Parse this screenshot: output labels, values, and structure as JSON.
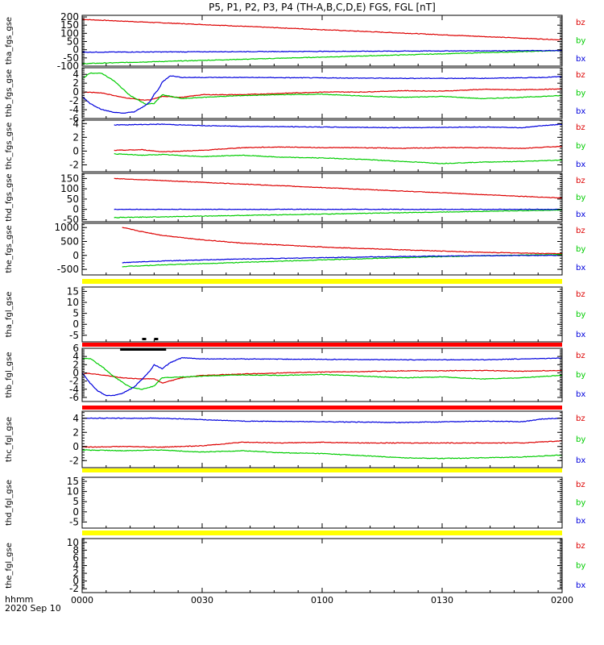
{
  "chart_data": {
    "type": "line",
    "title": "P5, P1, P2, P3, P4 (TH-A,B,C,D,E) FGS, FGL [nT]",
    "date_label": "2020 Sep 10",
    "time_unit_label": "hhmm",
    "x_ticks": [
      "0000",
      "0030",
      "0100",
      "0130",
      "0200"
    ],
    "x_range_minutes": [
      0,
      120
    ],
    "legend_entries": [
      {
        "label": "bz",
        "color": "#dd0000"
      },
      {
        "label": "by",
        "color": "#00cc00"
      },
      {
        "label": "bx",
        "color": "#0000dd"
      }
    ],
    "panels": [
      {
        "ylabel": "tha_fgs_gse",
        "ylim": [
          -100,
          210
        ],
        "yticks": [
          -100,
          -50,
          0,
          50,
          100,
          150,
          200
        ],
        "series": [
          {
            "name": "bz",
            "x": [
              0,
              120
            ],
            "y": [
              185,
              60
            ]
          },
          {
            "name": "by",
            "x": [
              0,
              120
            ],
            "y": [
              -85,
              -5
            ]
          },
          {
            "name": "bx",
            "x": [
              0,
              120
            ],
            "y": [
              -15,
              -5
            ]
          }
        ],
        "status_bar": null
      },
      {
        "ylabel": "thb_fgs_gse",
        "ylim": [
          -6,
          5.5
        ],
        "yticks": [
          -6,
          -4,
          -2,
          0,
          2,
          4
        ],
        "series": [
          {
            "name": "bz",
            "x": [
              0,
              5,
              10,
              15,
              17,
              20,
              25,
              30,
              40,
              50,
              60,
              70,
              80,
              90,
              100,
              110,
              120
            ],
            "y": [
              0,
              -0.2,
              -1.2,
              -1.8,
              -1.8,
              -1.0,
              -1.2,
              -0.6,
              -0.6,
              -0.3,
              0,
              0,
              0.3,
              0.2,
              0.6,
              0.5,
              0.7
            ]
          },
          {
            "name": "by",
            "x": [
              0,
              2,
              5,
              8,
              12,
              16,
              18,
              20,
              25,
              30,
              40,
              50,
              60,
              70,
              80,
              90,
              100,
              110,
              120
            ],
            "y": [
              3,
              4.3,
              4.2,
              2.5,
              -0.8,
              -2.8,
              -2.6,
              -0.6,
              -1.5,
              -1.2,
              -0.8,
              -0.6,
              -0.5,
              -0.9,
              -1.2,
              -1.0,
              -1.5,
              -1.2,
              -0.8
            ]
          },
          {
            "name": "bx",
            "x": [
              0,
              2,
              5,
              8,
              10,
              13,
              15,
              17,
              18,
              19,
              20,
              22,
              25,
              30,
              40,
              60,
              80,
              100,
              115,
              120
            ],
            "y": [
              -1,
              -2.6,
              -4,
              -4.6,
              -4.8,
              -4.5,
              -3.5,
              -2.2,
              -0.5,
              0.5,
              2.2,
              3.7,
              3.3,
              3.3,
              3.3,
              3.2,
              3.1,
              3.1,
              3.3,
              3.5
            ]
          }
        ],
        "status_bar": null
      },
      {
        "ylabel": "thc_fgs_gse",
        "ylim": [
          -3,
          4.5
        ],
        "yticks": [
          -2,
          0,
          2,
          4
        ],
        "series": [
          {
            "name": "bz",
            "x": [
              8,
              15,
              20,
              30,
              40,
              50,
              60,
              70,
              80,
              90,
              100,
              110,
              120
            ],
            "y": [
              0.1,
              0.2,
              -0.1,
              0.1,
              0.5,
              0.6,
              0.5,
              0.5,
              0.4,
              0.5,
              0.5,
              0.4,
              0.7
            ]
          },
          {
            "name": "by",
            "x": [
              8,
              15,
              20,
              30,
              40,
              50,
              60,
              70,
              80,
              90,
              100,
              110,
              120
            ],
            "y": [
              -0.4,
              -0.6,
              -0.5,
              -0.8,
              -0.6,
              -0.9,
              -1.0,
              -1.2,
              -1.5,
              -1.8,
              -1.6,
              -1.5,
              -1.3
            ]
          },
          {
            "name": "bx",
            "x": [
              8,
              20,
              30,
              40,
              60,
              80,
              100,
              110,
              115,
              120
            ],
            "y": [
              3.8,
              3.9,
              3.7,
              3.6,
              3.5,
              3.4,
              3.5,
              3.4,
              3.7,
              3.9
            ]
          }
        ],
        "status_bar": null
      },
      {
        "ylabel": "thd_fgs_gse",
        "ylim": [
          -60,
          175
        ],
        "yticks": [
          -50,
          0,
          50,
          100,
          150
        ],
        "series": [
          {
            "name": "bz",
            "x": [
              8,
              120
            ],
            "y": [
              150,
              55
            ]
          },
          {
            "name": "by",
            "x": [
              8,
              120
            ],
            "y": [
              -40,
              -3
            ]
          },
          {
            "name": "bx",
            "x": [
              8,
              120
            ],
            "y": [
              0,
              0
            ]
          }
        ],
        "status_bar": null
      },
      {
        "ylabel": "the_fgs_gse",
        "ylim": [
          -700,
          1150
        ],
        "yticks": [
          -500,
          0,
          500,
          1000
        ],
        "series": [
          {
            "name": "bz",
            "x": [
              10,
              15,
              20,
              30,
              40,
              60,
              80,
              100,
              120
            ],
            "y": [
              1000,
              850,
              720,
              560,
              440,
              300,
              200,
              110,
              60
            ]
          },
          {
            "name": "by",
            "x": [
              10,
              20,
              40,
              60,
              80,
              100,
              120
            ],
            "y": [
              -400,
              -340,
              -250,
              -160,
              -80,
              -10,
              30
            ]
          },
          {
            "name": "bx",
            "x": [
              10,
              20,
              40,
              60,
              80,
              100,
              120
            ],
            "y": [
              -260,
              -200,
              -130,
              -80,
              -40,
              -10,
              0
            ]
          }
        ],
        "status_bar": {
          "color": "#ffff00"
        }
      },
      {
        "ylabel": "tha_fgl_gse",
        "ylim": [
          -8,
          17
        ],
        "yticks": [
          -5,
          0,
          5,
          10,
          15
        ],
        "series": [],
        "status_bar": {
          "color": "#ff0000"
        }
      },
      {
        "ylabel": "thb_fgl_gse",
        "ylim": [
          -7,
          6
        ],
        "yticks": [
          -6,
          -4,
          -2,
          0,
          2,
          4,
          6
        ],
        "series": [
          {
            "name": "bz",
            "x": [
              0,
              5,
              10,
              15,
              18,
              20,
              25,
              30,
              40,
              50,
              60,
              70,
              80,
              90,
              100,
              110,
              120
            ],
            "y": [
              0,
              -0.5,
              -1.2,
              -1.5,
              -1.4,
              -2.5,
              -1.2,
              -0.6,
              -0.3,
              0,
              0.2,
              0.3,
              0.5,
              0.5,
              0.6,
              0.4,
              0.6
            ]
          },
          {
            "name": "by",
            "x": [
              0,
              2,
              5,
              8,
              12,
              15,
              18,
              20,
              25,
              30,
              40,
              50,
              60,
              70,
              80,
              90,
              100,
              110,
              120
            ],
            "y": [
              3.5,
              3.5,
              1.5,
              -1.0,
              -3.5,
              -4.0,
              -3.2,
              -1.2,
              -1.0,
              -0.8,
              -0.5,
              -0.6,
              -0.4,
              -0.8,
              -1.2,
              -1.0,
              -1.5,
              -1.2,
              -0.6
            ]
          },
          {
            "name": "bx",
            "x": [
              0,
              2,
              4,
              6,
              8,
              10,
              13,
              15,
              17,
              18,
              19,
              20,
              22,
              25,
              30,
              40,
              60,
              80,
              100,
              115,
              120
            ],
            "y": [
              0,
              -2.5,
              -4.5,
              -5.5,
              -5.5,
              -5.0,
              -3.5,
              -1.5,
              0.5,
              2.0,
              1.5,
              1.0,
              2.5,
              3.7,
              3.4,
              3.4,
              3.3,
              3.2,
              3.2,
              3.5,
              3.6
            ]
          }
        ],
        "status_bar": {
          "color": "#ff0000"
        }
      },
      {
        "ylabel": "thc_fgl_gse",
        "ylim": [
          -3,
          5
        ],
        "yticks": [
          -2,
          0,
          2,
          4
        ],
        "series": [
          {
            "name": "bz",
            "x": [
              0,
              10,
              20,
              30,
              40,
              50,
              60,
              70,
              80,
              90,
              100,
              110,
              120
            ],
            "y": [
              -0.1,
              0,
              -0.1,
              0.1,
              0.6,
              0.5,
              0.6,
              0.5,
              0.5,
              0.5,
              0.5,
              0.5,
              0.8
            ]
          },
          {
            "name": "by",
            "x": [
              0,
              10,
              20,
              30,
              40,
              50,
              60,
              70,
              80,
              90,
              100,
              110,
              120
            ],
            "y": [
              -0.5,
              -0.6,
              -0.5,
              -0.8,
              -0.6,
              -0.9,
              -1.0,
              -1.3,
              -1.6,
              -1.7,
              -1.6,
              -1.5,
              -1.2
            ]
          },
          {
            "name": "bx",
            "x": [
              0,
              20,
              30,
              40,
              60,
              80,
              100,
              110,
              115,
              120
            ],
            "y": [
              4.0,
              4.0,
              3.8,
              3.6,
              3.5,
              3.4,
              3.6,
              3.5,
              3.9,
              4.0
            ]
          }
        ],
        "status_bar": {
          "color": "#ffff00"
        }
      },
      {
        "ylabel": "thd_fgl_gse",
        "ylim": [
          -8,
          17
        ],
        "yticks": [
          -5,
          0,
          5,
          10,
          15
        ],
        "series": [],
        "status_bar": {
          "color": "#ffff00"
        }
      },
      {
        "ylabel": "the_fgl_gse",
        "ylim": [
          -3,
          11
        ],
        "yticks": [
          -2,
          0,
          2,
          4,
          6,
          8,
          10
        ],
        "series": [],
        "status_bar": null
      }
    ]
  }
}
